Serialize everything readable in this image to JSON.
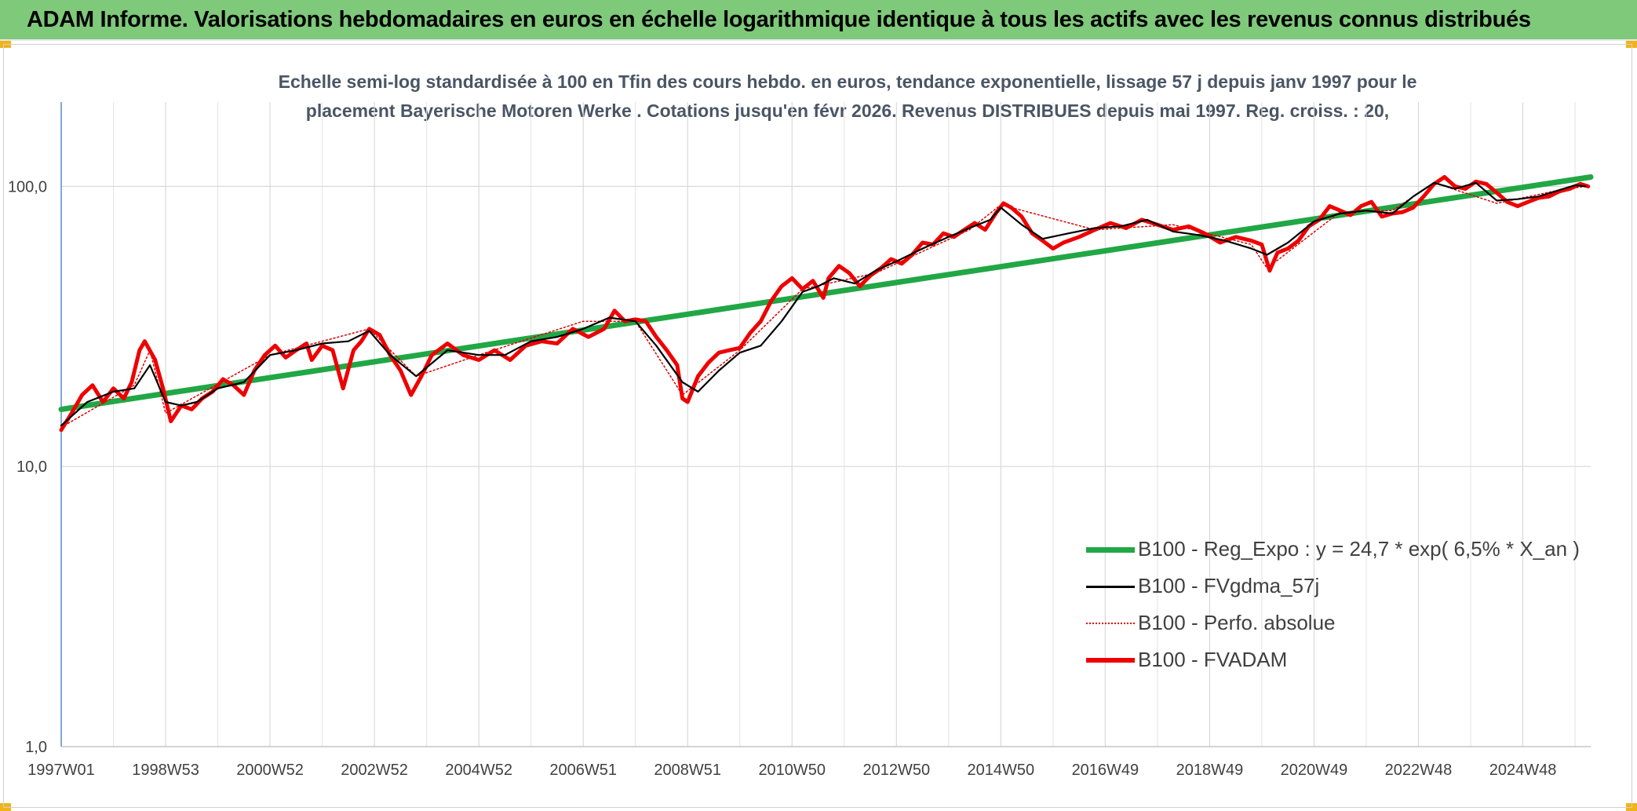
{
  "header": {
    "title": "ADAM Informe. Valorisations hebdomadaires en euros en échelle logarithmique identique à tous les actifs avec les revenus connus distribués"
  },
  "colors": {
    "header_bg": "#7ec97a",
    "corner_accent": "#f2b318",
    "reg_expo": "#21a745",
    "fvgdma": "#000000",
    "perfo": "#e00000",
    "fvadam": "#ee0000"
  },
  "chart_data": {
    "type": "line",
    "title_line1": "Echelle semi-log standardisée à 100 en Tfin des cours hebdo. en euros, tendance exponentielle, lissage 57 j depuis janv 1997 pour le",
    "title_line2": "placement Bayerische Motoren Werke . Cotations jusqu'en févr 2026. Revenus DISTRIBUES depuis mai 1997. Reg. croiss. : 20,",
    "y_scale": "log",
    "ylim": [
      1,
      200
    ],
    "y_ticks": [
      {
        "value": 1,
        "label": "1,0"
      },
      {
        "value": 10,
        "label": "10,0"
      },
      {
        "value": 100,
        "label": "100,0"
      }
    ],
    "xlim": [
      1997.0,
      2026.3
    ],
    "x_ticks": [
      {
        "value": 1997.0,
        "label": "1997W01"
      },
      {
        "value": 1999.0,
        "label": "1998W53"
      },
      {
        "value": 2001.0,
        "label": "2000W52"
      },
      {
        "value": 2003.0,
        "label": "2002W52"
      },
      {
        "value": 2005.0,
        "label": "2004W52"
      },
      {
        "value": 2007.0,
        "label": "2006W51"
      },
      {
        "value": 2009.0,
        "label": "2008W51"
      },
      {
        "value": 2011.0,
        "label": "2010W50"
      },
      {
        "value": 2013.0,
        "label": "2012W50"
      },
      {
        "value": 2015.0,
        "label": "2014W50"
      },
      {
        "value": 2017.0,
        "label": "2016W49"
      },
      {
        "value": 2019.0,
        "label": "2018W49"
      },
      {
        "value": 2021.0,
        "label": "2020W49"
      },
      {
        "value": 2023.0,
        "label": "2022W48"
      },
      {
        "value": 2025.0,
        "label": "2024W48"
      }
    ],
    "grid": "vertical",
    "legend_position": "bottom-right",
    "series": [
      {
        "name": "B100 - Reg_Expo : y = 24,7 * exp( 6,5% *  X_an )",
        "style": "thick",
        "x": [
          1997.0,
          2026.3
        ],
        "y": [
          16.0,
          108.0
        ]
      },
      {
        "name": "B100 - FVgdma_57j",
        "style": "thin",
        "x": [
          1997.0,
          1997.5,
          1998.0,
          1998.4,
          1998.7,
          1999.0,
          1999.3,
          1999.6,
          2000.0,
          2000.5,
          2001.0,
          2001.5,
          2002.0,
          2002.5,
          2002.9,
          2003.3,
          2003.8,
          2004.4,
          2005.0,
          2005.5,
          2006.0,
          2006.5,
          2007.0,
          2007.5,
          2008.0,
          2008.4,
          2008.9,
          2009.2,
          2009.6,
          2010.0,
          2010.4,
          2010.8,
          2011.2,
          2011.5,
          2011.8,
          2012.2,
          2012.6,
          2013.0,
          2013.5,
          2014.0,
          2014.4,
          2014.8,
          2015.0,
          2015.4,
          2015.8,
          2016.3,
          2016.8,
          2017.3,
          2017.8,
          2018.3,
          2018.8,
          2019.3,
          2019.8,
          2020.1,
          2020.5,
          2021.0,
          2021.5,
          2022.0,
          2022.5,
          2022.9,
          2023.3,
          2023.7,
          2024.1,
          2024.5,
          2024.9,
          2025.3,
          2025.7,
          2026.0,
          2026.2
        ],
        "y": [
          14,
          17,
          18.5,
          19,
          23,
          17,
          16.5,
          17,
          19,
          20,
          25,
          26,
          27.5,
          28,
          30.5,
          25,
          21,
          26,
          25,
          25,
          28,
          29,
          31,
          34,
          33,
          27,
          20,
          18.5,
          22,
          25.5,
          27,
          33,
          42,
          44,
          47,
          45,
          50,
          54,
          60,
          66,
          71,
          76,
          84,
          73,
          65,
          68,
          71,
          72,
          76,
          69,
          67,
          64,
          60,
          57,
          63,
          75,
          80,
          82,
          80,
          92,
          103,
          98,
          103,
          89,
          90,
          92,
          97,
          101,
          100
        ]
      },
      {
        "name": "B100 - Perfo. absolue",
        "style": "dotted",
        "x": [
          1997.0,
          1998.4,
          1998.7,
          1999.0,
          2001.0,
          2002.9,
          2003.8,
          2005.0,
          2007.0,
          2008.0,
          2008.9,
          2010.0,
          2011.2,
          2012.6,
          2014.4,
          2015.0,
          2016.8,
          2018.3,
          2019.8,
          2020.1,
          2021.5,
          2022.5,
          2023.3,
          2024.5,
          2025.7,
          2026.2
        ],
        "y": [
          13.8,
          19.5,
          26,
          15.5,
          25,
          31,
          21,
          25,
          33,
          33,
          18,
          26,
          43,
          49,
          70,
          86,
          70,
          73,
          62,
          51,
          81,
          82,
          103,
          87,
          97,
          100
        ]
      },
      {
        "name": "B100 - FVADAM",
        "style": "thick",
        "x": [
          1997.0,
          1997.2,
          1997.4,
          1997.6,
          1997.8,
          1998.0,
          1998.2,
          1998.35,
          1998.5,
          1998.6,
          1998.8,
          1998.95,
          1999.1,
          1999.3,
          1999.5,
          1999.7,
          1999.9,
          2000.1,
          2000.3,
          2000.5,
          2000.7,
          2000.9,
          2001.1,
          2001.3,
          2001.5,
          2001.7,
          2001.8,
          2002.0,
          2002.2,
          2002.4,
          2002.6,
          2002.75,
          2002.9,
          2003.1,
          2003.3,
          2003.5,
          2003.7,
          2003.9,
          2004.1,
          2004.4,
          2004.7,
          2005.0,
          2005.3,
          2005.6,
          2005.9,
          2006.2,
          2006.5,
          2006.8,
          2007.1,
          2007.4,
          2007.6,
          2007.8,
          2008.0,
          2008.2,
          2008.4,
          2008.6,
          2008.8,
          2008.9,
          2009.0,
          2009.2,
          2009.4,
          2009.6,
          2009.8,
          2010.0,
          2010.2,
          2010.4,
          2010.6,
          2010.8,
          2011.0,
          2011.2,
          2011.4,
          2011.6,
          2011.7,
          2011.9,
          2012.1,
          2012.3,
          2012.5,
          2012.7,
          2012.9,
          2013.1,
          2013.3,
          2013.5,
          2013.7,
          2013.9,
          2014.1,
          2014.3,
          2014.5,
          2014.7,
          2014.9,
          2015.05,
          2015.2,
          2015.4,
          2015.6,
          2015.8,
          2016.0,
          2016.2,
          2016.5,
          2016.8,
          2017.1,
          2017.4,
          2017.7,
          2018.0,
          2018.3,
          2018.6,
          2018.9,
          2019.2,
          2019.5,
          2019.8,
          2020.0,
          2020.15,
          2020.3,
          2020.5,
          2020.7,
          2020.9,
          2021.1,
          2021.3,
          2021.5,
          2021.7,
          2021.9,
          2022.1,
          2022.3,
          2022.5,
          2022.7,
          2022.9,
          2023.1,
          2023.3,
          2023.5,
          2023.7,
          2023.9,
          2024.1,
          2024.3,
          2024.5,
          2024.7,
          2024.9,
          2025.1,
          2025.3,
          2025.5,
          2025.7,
          2025.9,
          2026.1,
          2026.25
        ],
        "y": [
          13.5,
          15.5,
          18,
          19.5,
          17,
          19,
          17.5,
          20,
          26,
          28,
          24,
          19,
          14.5,
          16.5,
          16,
          17.5,
          18.5,
          20.5,
          19.5,
          18,
          22,
          25,
          27,
          24.5,
          26,
          27.5,
          24,
          27,
          26,
          19,
          26,
          28,
          31,
          29.5,
          25,
          22,
          18,
          21,
          25,
          27.5,
          25,
          24,
          26,
          24,
          27,
          28,
          27.5,
          31,
          29,
          31,
          36,
          33,
          33.5,
          33,
          29,
          26,
          23,
          17.5,
          17,
          21,
          23.5,
          25.5,
          26,
          26.5,
          30,
          33,
          39,
          44,
          47,
          43,
          46,
          40,
          47,
          52,
          49,
          44,
          48,
          51,
          55,
          53,
          57,
          63,
          62,
          68,
          66,
          70,
          74,
          70,
          80,
          87,
          84,
          78,
          68,
          64,
          60,
          63,
          66,
          70,
          74,
          71,
          76,
          73,
          70,
          72,
          68,
          63,
          66,
          64,
          62,
          50,
          58,
          60,
          64,
          72,
          76,
          85,
          82,
          79,
          85,
          88,
          78,
          80,
          81,
          84,
          92,
          102,
          108,
          100,
          98,
          104,
          102,
          95,
          88,
          85,
          88,
          91,
          92,
          96,
          98,
          102,
          100
        ]
      }
    ]
  }
}
